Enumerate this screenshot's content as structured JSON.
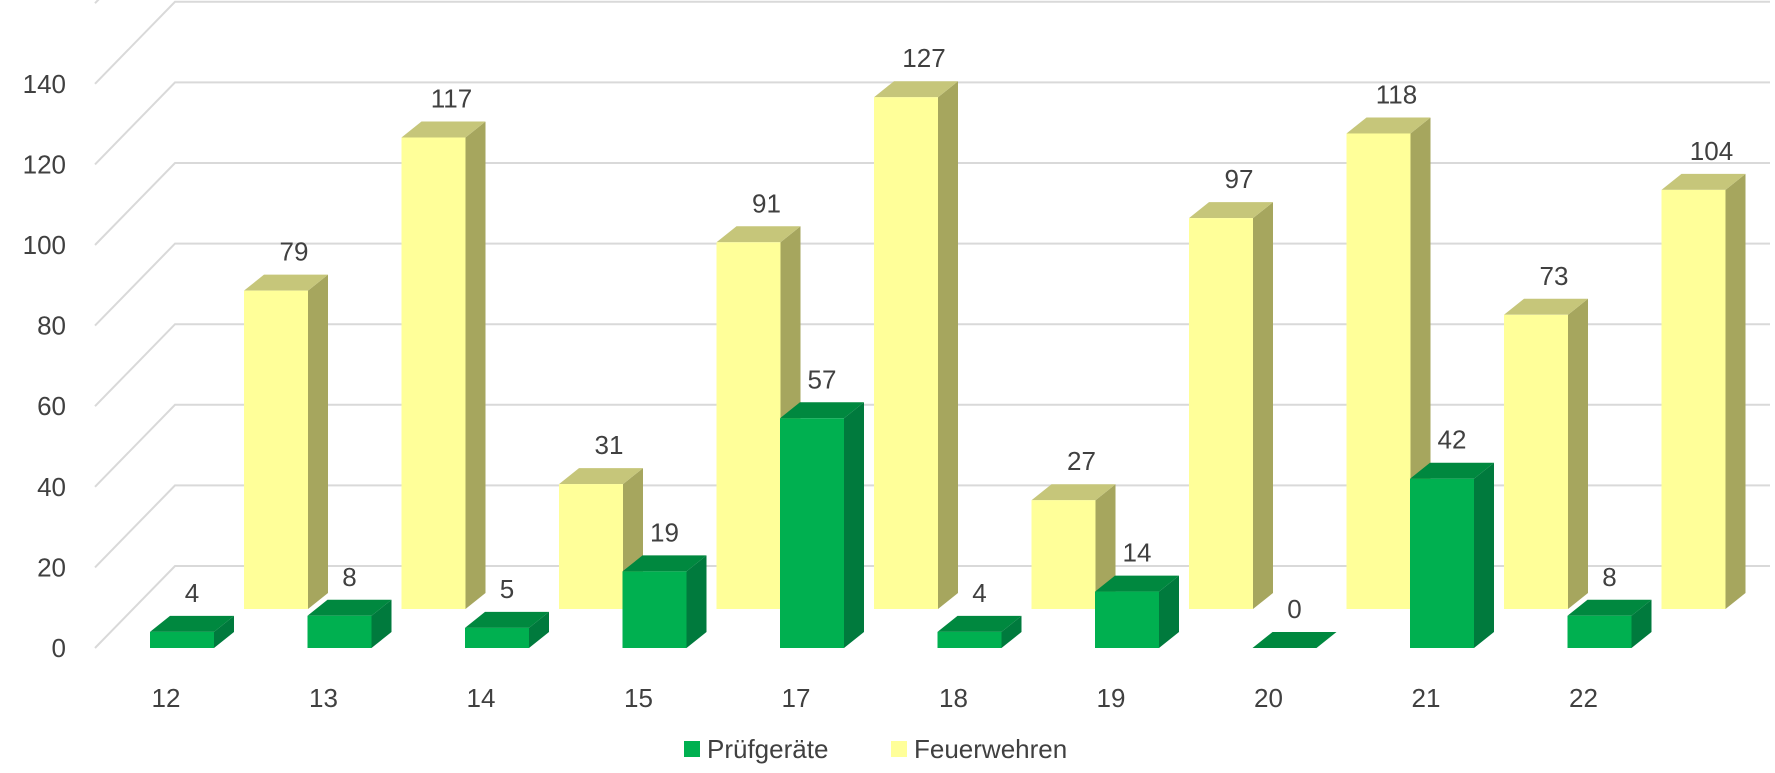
{
  "chart_data": {
    "type": "bar",
    "categories": [
      "12",
      "13",
      "14",
      "15",
      "17",
      "18",
      "19",
      "20",
      "21",
      "22"
    ],
    "series": [
      {
        "name": "Prüfgeräte",
        "values": [
          4,
          8,
          5,
          19,
          57,
          4,
          14,
          0,
          42,
          8
        ],
        "color": "#00b050",
        "side_color": "#007a3d",
        "top_color": "#00883f"
      },
      {
        "name": "Feuerwehren",
        "values": [
          79,
          117,
          31,
          91,
          127,
          27,
          97,
          118,
          73,
          104
        ],
        "color": "#ffff99",
        "side_color": "#a6a65e",
        "top_color": "#c6c67a"
      }
    ],
    "y_ticks": [
      "0",
      "20",
      "40",
      "60",
      "80",
      "100",
      "120",
      "140"
    ],
    "ylim": [
      0,
      160
    ],
    "grid": true,
    "legend_position": "bottom",
    "title": "",
    "xlabel": "",
    "ylabel": ""
  }
}
